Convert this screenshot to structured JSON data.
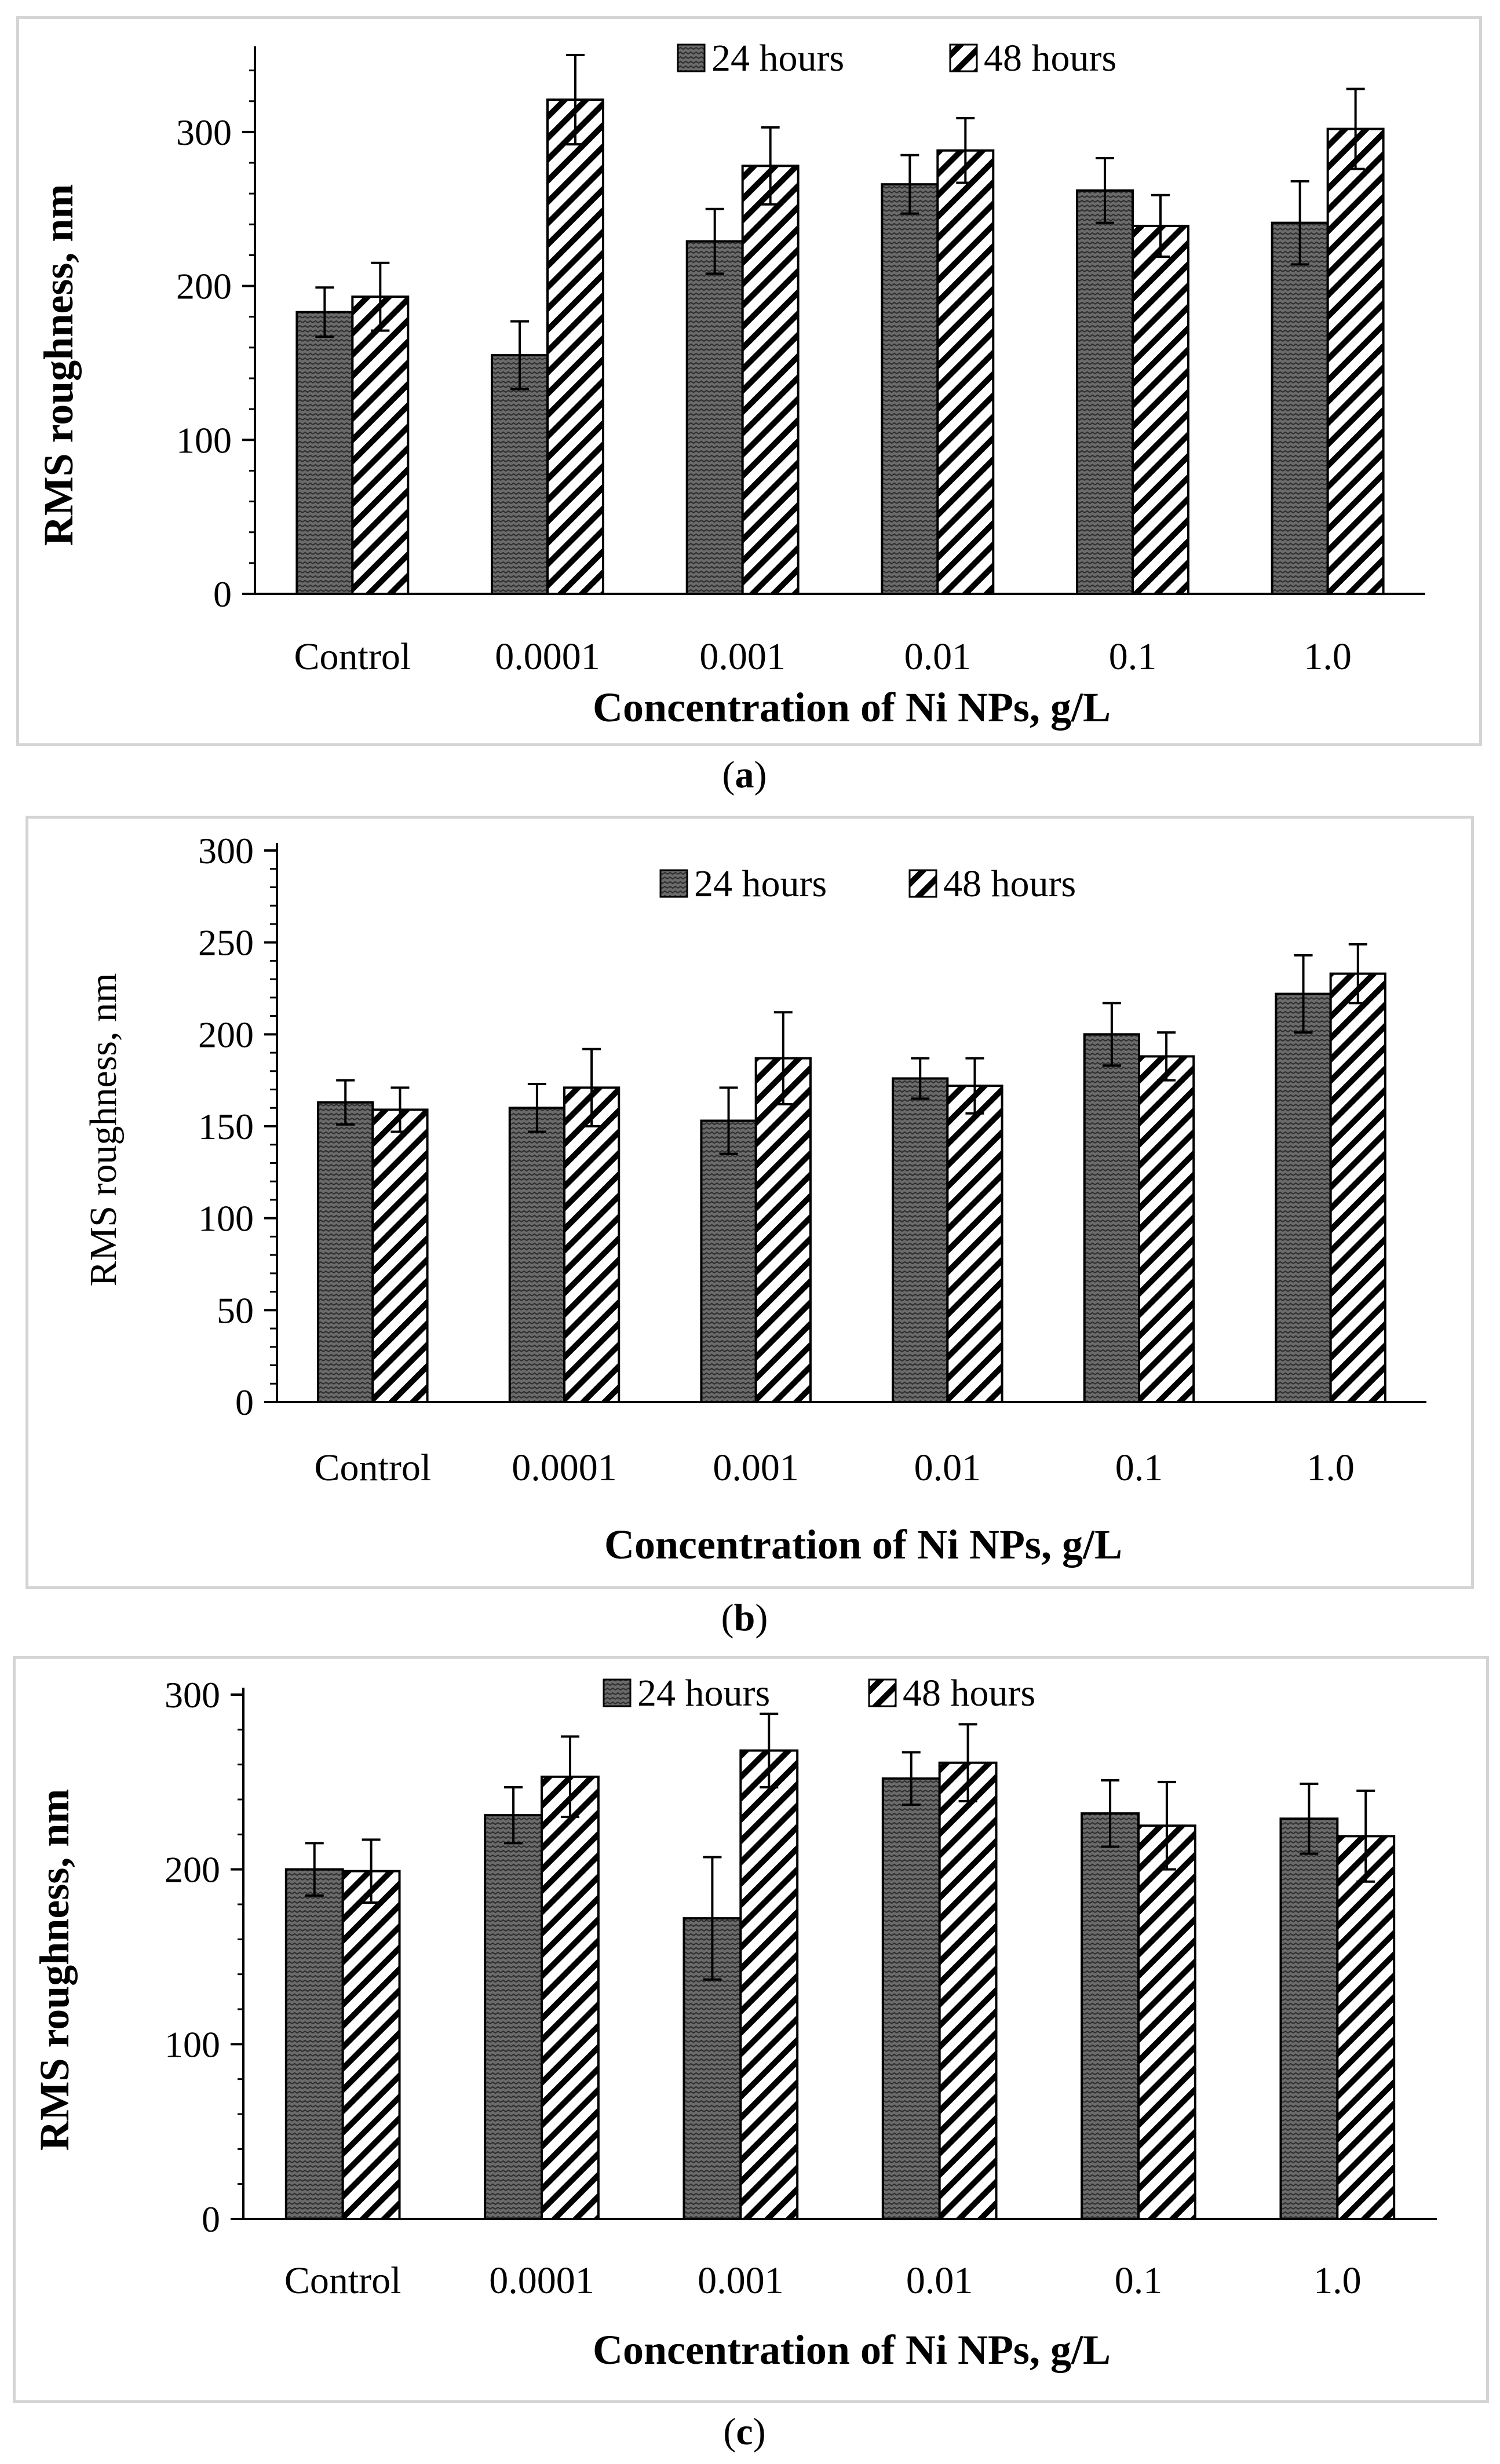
{
  "figure": {
    "captions": [
      "a",
      "b",
      "c"
    ]
  },
  "patterns": {
    "dark_fill": "#6b6b6b",
    "light_fill": "#ffffff",
    "stroke": "#000000"
  },
  "chart_data": [
    {
      "type": "bar",
      "panel": "a",
      "title": "",
      "categories": [
        "Control",
        "0.0001",
        "0.001",
        "0.01",
        "0.1",
        "1.0"
      ],
      "series": [
        {
          "name": "24 hours",
          "values": [
            183,
            155,
            229,
            266,
            262,
            241
          ],
          "errors": [
            16,
            22,
            21,
            19,
            21,
            27
          ]
        },
        {
          "name": "48 hours",
          "values": [
            193,
            321,
            278,
            288,
            239,
            302
          ],
          "errors": [
            22,
            29,
            25,
            21,
            20,
            26
          ]
        }
      ],
      "xlabel": "Concentration of Ni NPs, g/L",
      "ylabel": "RMS roughness, nm",
      "ylabel_bold": true,
      "ylim": [
        0,
        350
      ],
      "yticks": [
        0,
        100,
        200,
        300
      ],
      "minor_ticks": false,
      "legend_position": "top-center"
    },
    {
      "type": "bar",
      "panel": "b",
      "title": "",
      "categories": [
        "Control",
        "0.0001",
        "0.001",
        "0.01",
        "0.1",
        "1.0"
      ],
      "series": [
        {
          "name": "24 hours",
          "values": [
            163,
            160,
            153,
            176,
            200,
            222
          ],
          "errors": [
            12,
            13,
            18,
            11,
            17,
            21
          ]
        },
        {
          "name": "48 hours",
          "values": [
            159,
            171,
            187,
            172,
            188,
            233
          ],
          "errors": [
            12,
            21,
            25,
            15,
            13,
            16
          ]
        }
      ],
      "xlabel": "Concentration of Ni NPs, g/L",
      "ylabel": "RMS roughness, nm",
      "ylabel_bold": false,
      "ylim": [
        0,
        300
      ],
      "yticks": [
        0,
        50,
        100,
        150,
        200,
        250,
        300
      ],
      "minor_ticks": true,
      "legend_position": "top-center"
    },
    {
      "type": "bar",
      "panel": "c",
      "title": "",
      "categories": [
        "Control",
        "0.0001",
        "0.001",
        "0.01",
        "0.1",
        "1.0"
      ],
      "series": [
        {
          "name": "24 hours",
          "values": [
            200,
            231,
            172,
            252,
            232,
            229
          ],
          "errors": [
            15,
            16,
            35,
            15,
            19,
            20
          ]
        },
        {
          "name": "48 hours",
          "values": [
            199,
            253,
            268,
            261,
            225,
            219
          ],
          "errors": [
            18,
            23,
            21,
            22,
            25,
            26
          ]
        }
      ],
      "xlabel": "Concentration of Ni NPs, g/L",
      "ylabel": "RMS roughness, nm",
      "ylabel_bold": true,
      "ylim": [
        0,
        300
      ],
      "yticks": [
        0,
        100,
        200,
        300
      ],
      "minor_ticks": false,
      "legend_position": "top-center"
    }
  ]
}
